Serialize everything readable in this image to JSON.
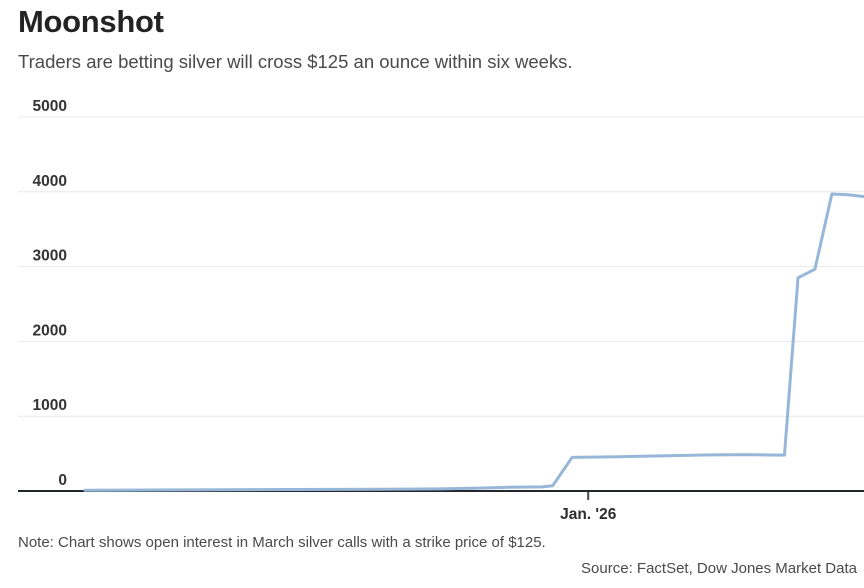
{
  "chart_data": {
    "type": "line",
    "title": "Moonshot",
    "subtitle": "Traders are betting silver will cross $125 an ounce within six weeks.",
    "note": "Note: Chart shows open interest in March silver calls with a strike price of $125.",
    "source": "Source: FactSet, Dow Jones Market Data",
    "xlabel": "",
    "ylabel": "",
    "ylim": [
      0,
      5000
    ],
    "yticks": [
      0,
      1000,
      2000,
      3000,
      4000,
      5000
    ],
    "xticks": [
      {
        "label": "Jan. '26",
        "frac": 0.674
      }
    ],
    "grid": true,
    "legend": "none",
    "series": [
      {
        "name": "Open interest in March silver calls, $125 strike (contracts)",
        "points": [
          [
            0.079,
            10
          ],
          [
            0.16,
            13
          ],
          [
            0.24,
            16
          ],
          [
            0.33,
            20
          ],
          [
            0.43,
            24
          ],
          [
            0.5,
            28
          ],
          [
            0.545,
            38
          ],
          [
            0.58,
            50
          ],
          [
            0.62,
            55
          ],
          [
            0.632,
            70
          ],
          [
            0.655,
            450
          ],
          [
            0.71,
            458
          ],
          [
            0.76,
            470
          ],
          [
            0.81,
            482
          ],
          [
            0.86,
            487
          ],
          [
            0.889,
            481
          ],
          [
            0.906,
            480
          ],
          [
            0.922,
            2850
          ],
          [
            0.942,
            2965
          ],
          [
            0.962,
            3970
          ],
          [
            0.981,
            3960
          ],
          [
            1.0,
            3935
          ]
        ]
      }
    ],
    "colors": {
      "line": "#96b7d8",
      "baseline": "#23262d",
      "gridline": "#e8e8e8",
      "tick": "#4a4a4a",
      "axis_label": "#333333",
      "x_label": "#2d2d2d"
    }
  }
}
